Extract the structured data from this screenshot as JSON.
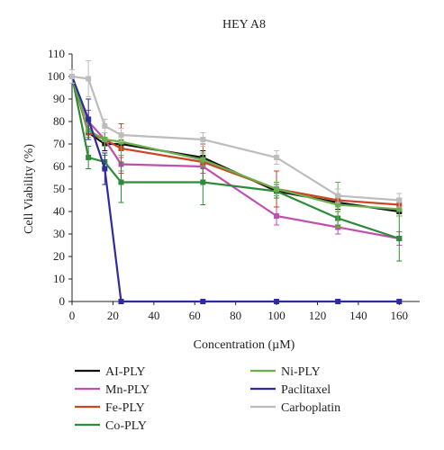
{
  "chart_data": {
    "type": "line",
    "title": "HEY A8",
    "xlabel": "Concentration (µM)",
    "ylabel": "Cell Viability (%)",
    "xlim": [
      0,
      170
    ],
    "ylim": [
      0,
      110
    ],
    "x_ticks": [
      0,
      20,
      40,
      60,
      80,
      100,
      120,
      140,
      160
    ],
    "y_ticks": [
      0,
      10,
      20,
      30,
      40,
      50,
      60,
      70,
      80,
      90,
      100,
      110
    ],
    "legend_position": "bottom",
    "series": [
      {
        "name": "AI-PLY",
        "color": "#111111",
        "x": [
          0,
          8,
          16,
          24,
          64,
          100,
          130,
          160
        ],
        "y": [
          100,
          75,
          70,
          70,
          64,
          49,
          44,
          40
        ],
        "err": [
          3,
          3,
          3,
          3,
          3,
          3,
          3,
          2
        ]
      },
      {
        "name": "Mn-PLY",
        "color": "#c04fb0",
        "x": [
          0,
          8,
          16,
          24,
          64,
          100,
          130,
          160
        ],
        "y": [
          100,
          80,
          72,
          61,
          60,
          38,
          33,
          28
        ],
        "err": [
          3,
          5,
          3,
          3,
          3,
          4,
          3,
          3
        ]
      },
      {
        "name": "Fe-PLY",
        "color": "#cc4422",
        "x": [
          0,
          8,
          16,
          24,
          64,
          100,
          130,
          160
        ],
        "y": [
          100,
          75,
          72,
          68,
          62,
          50,
          45,
          43
        ],
        "err": [
          3,
          3,
          3,
          11,
          8,
          8,
          3,
          3
        ]
      },
      {
        "name": "Co-PLY",
        "color": "#2e8b3a",
        "x": [
          0,
          8,
          16,
          24,
          64,
          100,
          130,
          160
        ],
        "y": [
          100,
          64,
          62,
          53,
          53,
          49,
          37,
          28
        ],
        "err": [
          3,
          5,
          3,
          9,
          10,
          3,
          3,
          10
        ]
      },
      {
        "name": "Ni-PLY",
        "color": "#6ab04c",
        "x": [
          0,
          8,
          16,
          24,
          64,
          100,
          130,
          160
        ],
        "y": [
          100,
          76,
          72,
          71,
          63,
          50,
          43,
          41
        ],
        "err": [
          3,
          3,
          3,
          6,
          3,
          3,
          10,
          3
        ]
      },
      {
        "name": "Paclitaxel",
        "color": "#2e2aa0",
        "x": [
          0,
          8,
          16,
          24,
          64,
          100,
          130,
          160
        ],
        "y": [
          100,
          81,
          59,
          0,
          0,
          0,
          0,
          0
        ],
        "err": [
          3,
          9,
          7,
          0,
          0,
          0,
          0,
          0
        ]
      },
      {
        "name": "Carboplatin",
        "color": "#bdbdbd",
        "x": [
          0,
          8,
          16,
          24,
          64,
          100,
          130,
          160
        ],
        "y": [
          100,
          99,
          78,
          74,
          72,
          64,
          47,
          45
        ],
        "err": [
          3,
          8,
          3,
          3,
          3,
          3,
          3,
          3
        ]
      }
    ]
  }
}
